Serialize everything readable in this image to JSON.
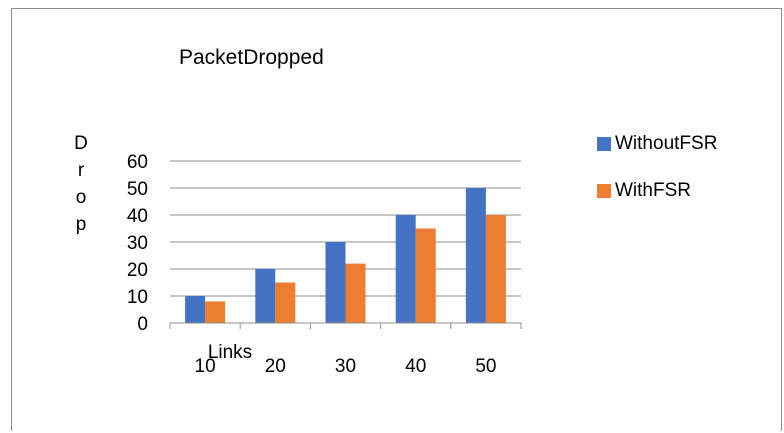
{
  "chart_data": {
    "type": "bar",
    "title": "PacketDropped",
    "xlabel": "Links",
    "ylabel": "Drop",
    "categories": [
      "10",
      "20",
      "30",
      "40",
      "50"
    ],
    "series": [
      {
        "name": "WithoutFSR",
        "color": "#4472C4",
        "values": [
          10,
          20,
          30,
          40,
          50
        ]
      },
      {
        "name": "WithFSR",
        "color": "#ED7D31",
        "values": [
          8,
          15,
          22,
          35,
          40
        ]
      }
    ],
    "ylim": [
      0,
      60
    ],
    "yticks": [
      0,
      10,
      20,
      30,
      40,
      50,
      60
    ],
    "grid": true,
    "legend": "right"
  }
}
